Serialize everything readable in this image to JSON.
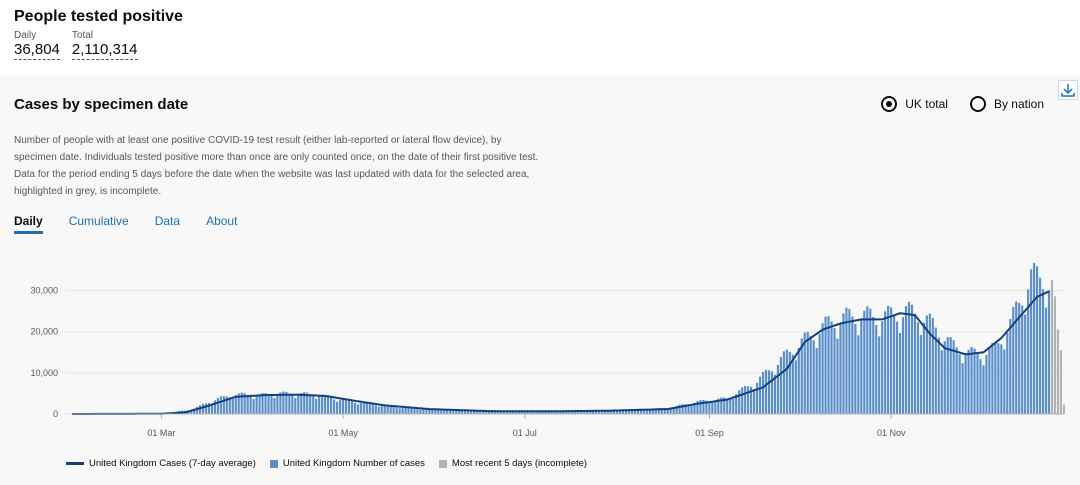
{
  "headline": {
    "title": "People tested positive",
    "daily_label": "Daily",
    "daily_value": "36,804",
    "total_label": "Total",
    "total_value": "2,110,314"
  },
  "card": {
    "title": "Cases by specimen date",
    "radios": [
      {
        "label": "UK total",
        "selected": true
      },
      {
        "label": "By nation",
        "selected": false
      }
    ],
    "description": "Number of people with at least one positive COVID-19 test result (either lab-reported or lateral flow device), by specimen date. Individuals tested positive more than once are only counted once, on the date of their first positive test. Data for the period ending 5 days before the date when the website was last updated with data for the selected area, highlighted in grey, is incomplete.",
    "tabs": [
      {
        "label": "Daily",
        "active": true
      },
      {
        "label": "Cumulative",
        "active": false
      },
      {
        "label": "Data",
        "active": false
      },
      {
        "label": "About",
        "active": false
      }
    ]
  },
  "colors": {
    "bar": "#5b8fcc",
    "incomplete": "#b1b4b6",
    "line": "#12407f",
    "accent": "#1d70b8"
  },
  "chart_data": {
    "type": "bar",
    "title": "Cases by specimen date",
    "ylim": [
      0,
      35000
    ],
    "yticks": [
      0,
      10000,
      20000,
      30000
    ],
    "ytick_labels": [
      "0",
      "10,000",
      "20,000",
      "30,000"
    ],
    "x_start": "2020-01-31",
    "x_end": "2020-12-28",
    "xticks": [
      {
        "day": 30,
        "label": "01 Mar"
      },
      {
        "day": 91,
        "label": "01 May"
      },
      {
        "day": 152,
        "label": "01 Jul"
      },
      {
        "day": 214,
        "label": "01 Sep"
      },
      {
        "day": 275,
        "label": "01 Nov"
      }
    ],
    "incomplete_days": 5,
    "grid": true,
    "legend": [
      "United Kingdom Cases (7-day average)",
      "United Kingdom Number of cases",
      "Most recent 5 days (incomplete)"
    ],
    "series_anchor_points": {
      "description": "Daily cases sampled at day offsets from 2020-01-31 (interpolated between anchors)",
      "days": [
        0,
        20,
        30,
        40,
        48,
        55,
        62,
        70,
        80,
        95,
        105,
        120,
        140,
        160,
        180,
        200,
        210,
        220,
        230,
        240,
        245,
        250,
        255,
        260,
        265,
        270,
        275,
        280,
        285,
        290,
        295,
        300,
        305,
        310,
        315,
        318,
        322,
        326,
        329,
        330,
        331,
        332,
        333
      ],
      "cases": [
        0,
        20,
        150,
        1000,
        3500,
        4800,
        4500,
        5000,
        4800,
        3000,
        2000,
        1200,
        700,
        600,
        900,
        1400,
        3000,
        3800,
        8000,
        14500,
        17500,
        20000,
        22500,
        23500,
        24000,
        23500,
        24000,
        25000,
        24000,
        21000,
        17000,
        15000,
        14500,
        16000,
        22000,
        27000,
        33500,
        33000,
        31000,
        26000,
        19000,
        15500,
        2500
      ]
    },
    "avg_anchor_points": {
      "days": [
        0,
        30,
        38,
        45,
        55,
        65,
        75,
        85,
        95,
        105,
        120,
        140,
        160,
        180,
        200,
        210,
        220,
        232,
        240,
        246,
        252,
        258,
        265,
        272,
        278,
        283,
        288,
        293,
        300,
        306,
        312,
        318,
        324,
        328
      ],
      "cases": [
        0,
        50,
        400,
        1800,
        4200,
        4600,
        4700,
        4400,
        3200,
        2100,
        1200,
        700,
        650,
        800,
        1200,
        2500,
        3500,
        6500,
        11000,
        17500,
        20500,
        22000,
        23000,
        23000,
        24500,
        24000,
        19500,
        16000,
        14500,
        15000,
        18500,
        23500,
        28500,
        29800
      ]
    }
  }
}
